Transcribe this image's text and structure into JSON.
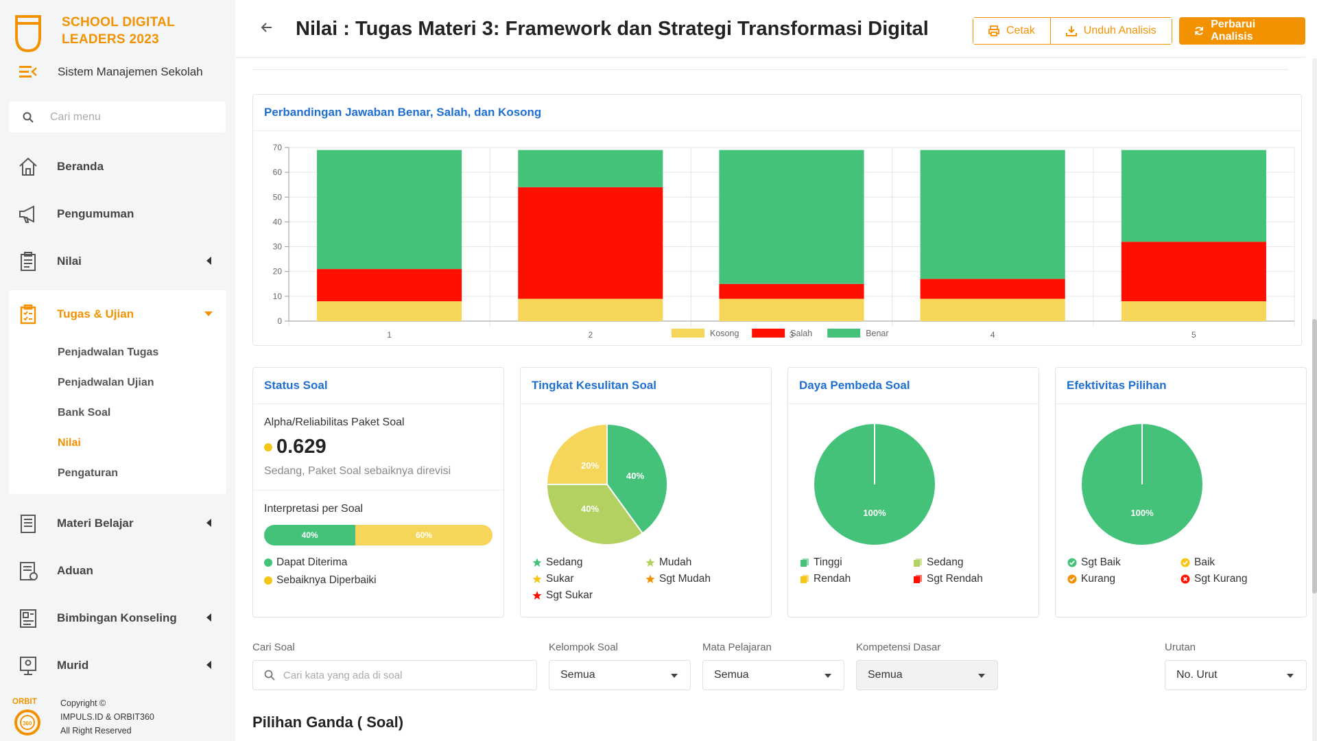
{
  "brand": {
    "line1": "SCHOOL DIGITAL",
    "line2": "LEADERS 2023",
    "subtitle": "Sistem Manajemen Sekolah"
  },
  "sidebar": {
    "search_placeholder": "Cari menu",
    "items": [
      {
        "label": "Beranda"
      },
      {
        "label": "Pengumuman"
      },
      {
        "label": "Nilai"
      },
      {
        "label": "Tugas & Ujian"
      },
      {
        "label": "Materi Belajar"
      },
      {
        "label": "Aduan"
      },
      {
        "label": "Bimbingan Konseling"
      },
      {
        "label": "Murid"
      }
    ],
    "sub_items": [
      {
        "label": "Penjadwalan Tugas"
      },
      {
        "label": "Penjadwalan Ujian"
      },
      {
        "label": "Bank Soal"
      },
      {
        "label": "Nilai"
      },
      {
        "label": "Pengaturan"
      }
    ],
    "footer": {
      "logo_text": "ORBIT",
      "logo_num": "360",
      "line1": "Copyright ©",
      "line2": "IMPULS.ID & ORBIT360",
      "line3": "All Right Reserved"
    }
  },
  "header": {
    "title": "Nilai : Tugas Materi 3: Framework dan Strategi Transformasi Digital",
    "print_label": "Cetak",
    "download_label": "Unduh Analisis",
    "refresh_label": "Perbarui Analisis"
  },
  "colors": {
    "accent": "#f39200",
    "kosong": "#f5d55a",
    "salah": "#fe0f00",
    "benar": "#45c27a",
    "link": "#1f6fd1"
  },
  "chart_data": {
    "type": "bar",
    "stacked": true,
    "title": "Perbandingan Jawaban Benar, Salah, dan Kosong",
    "categories": [
      "1",
      "2",
      "3",
      "4",
      "5"
    ],
    "series": [
      {
        "name": "Kosong",
        "values": [
          8,
          9,
          9,
          9,
          8
        ]
      },
      {
        "name": "Salah",
        "values": [
          13,
          45,
          6,
          8,
          24
        ]
      },
      {
        "name": "Benar",
        "values": [
          48,
          15,
          54,
          52,
          37
        ]
      }
    ],
    "ylim": [
      0,
      70
    ],
    "yticks": [
      0,
      10,
      20,
      30,
      40,
      50,
      60,
      70
    ],
    "grid": true,
    "legend": "bottom"
  },
  "status": {
    "title": "Status Soal",
    "alpha_label": "Alpha/Reliabilitas Paket Soal",
    "alpha_value": "0.629",
    "alpha_desc": "Sedang, Paket Soal sebaiknya direvisi",
    "interp_label": "Interpretasi per Soal",
    "bar": [
      {
        "label": "40%",
        "value": 40
      },
      {
        "label": "60%",
        "value": 60
      }
    ],
    "legend": [
      "Dapat Diterima",
      "Sebaiknya Diperbaiki"
    ]
  },
  "difficulty": {
    "title": "Tingkat Kesulitan Soal",
    "slices": [
      {
        "label": "40%",
        "value": 40
      },
      {
        "label": "40%",
        "value": 40
      },
      {
        "label": "20%",
        "value": 20
      }
    ],
    "legend": [
      "Sedang",
      "Mudah",
      "Sukar",
      "Sgt Mudah",
      "Sgt Sukar"
    ]
  },
  "discrimination": {
    "title": "Daya Pembeda Soal",
    "slice_label": "100%",
    "legend": [
      "Tinggi",
      "Sedang",
      "Rendah",
      "Sgt Rendah"
    ]
  },
  "effectiveness": {
    "title": "Efektivitas Pilihan",
    "slice_label": "100%",
    "legend": [
      "Sgt Baik",
      "Baik",
      "Kurang",
      "Sgt Kurang"
    ]
  },
  "filters": {
    "search_label": "Cari Soal",
    "search_placeholder": "Cari kata yang ada di soal",
    "group_label": "Kelompok Soal",
    "group_value": "Semua",
    "subject_label": "Mata Pelajaran",
    "subject_value": "Semua",
    "competency_label": "Kompetensi Dasar",
    "competency_value": "Semua",
    "order_label": "Urutan",
    "order_value": "No. Urut"
  },
  "section_title": "Pilihan Ganda ( Soal)"
}
